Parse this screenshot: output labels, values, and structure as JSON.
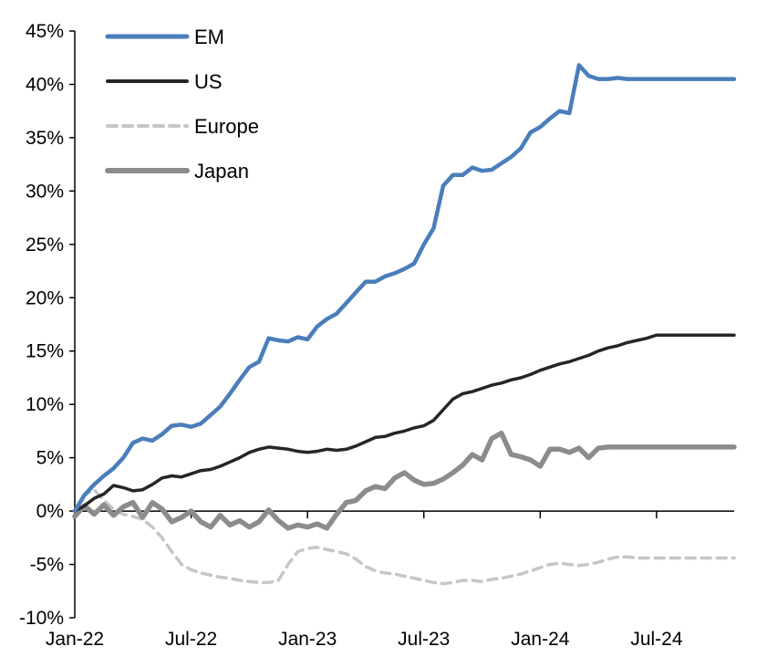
{
  "chart_data": {
    "type": "line",
    "title": "",
    "xlabel": "",
    "ylabel": "",
    "ylim": [
      -10,
      45
    ],
    "y_ticks": [
      45,
      40,
      35,
      30,
      25,
      20,
      15,
      10,
      5,
      0,
      -5,
      -10
    ],
    "y_tick_labels": [
      "45%",
      "40%",
      "35%",
      "30%",
      "25%",
      "20%",
      "15%",
      "10%",
      "5%",
      "0%",
      "-5%",
      "-10%"
    ],
    "x_range": [
      0,
      34
    ],
    "x_ticks": [
      0,
      6,
      12,
      18,
      24,
      30
    ],
    "x_tick_labels": [
      "Jan-22",
      "Jul-22",
      "Jan-23",
      "Jul-23",
      "Jan-24",
      "Jul-24"
    ],
    "legend_position": "top-left",
    "series": [
      {
        "name": "EM",
        "color": "#4a7ebb",
        "dash": "solid",
        "x": [
          0,
          0.5,
          1,
          1.5,
          2,
          2.5,
          3,
          3.5,
          4,
          4.5,
          5,
          5.5,
          6,
          6.5,
          7,
          7.5,
          8,
          8.5,
          9,
          9.5,
          10,
          10.5,
          11,
          11.5,
          12,
          12.5,
          13,
          13.5,
          14,
          14.5,
          15,
          15.5,
          16,
          16.5,
          17,
          17.5,
          18,
          18.5,
          19,
          19.5,
          20,
          20.5,
          21,
          21.5,
          22,
          22.5,
          23,
          23.5,
          24,
          24.5,
          25,
          25.5,
          26,
          26.5,
          27,
          27.5,
          28,
          28.5,
          29,
          29.5,
          30,
          30.5,
          31,
          31.5,
          32,
          32.5,
          33,
          33.4,
          33.8,
          34
        ],
        "values": [
          0,
          1.5,
          2.5,
          3.3,
          4,
          5,
          6.4,
          6.8,
          6.6,
          7.2,
          8,
          8.1,
          7.9,
          8.2,
          9,
          9.8,
          11,
          12.3,
          13.5,
          14,
          16.2,
          16,
          15.9,
          16.3,
          16.1,
          17.3,
          18,
          18.5,
          19.5,
          20.5,
          21.5,
          21.5,
          22,
          22.3,
          22.7,
          23.2,
          25,
          26.5,
          30.5,
          31.5,
          31.5,
          32.2,
          31.9,
          32,
          32.6,
          33.2,
          34,
          35.5,
          36,
          36.8,
          37.5,
          37.3,
          41.8,
          40.8,
          40.5,
          40.5,
          40.6,
          40.5,
          40.5,
          40.5,
          40.5,
          40.5,
          40.5,
          40.5,
          40.5,
          40.5,
          40.5,
          40.5,
          40.5,
          40.5
        ]
      },
      {
        "name": "US",
        "color": "#262626",
        "dash": "solid",
        "x": [
          0,
          0.5,
          1,
          1.5,
          2,
          2.5,
          3,
          3.5,
          4,
          4.5,
          5,
          5.5,
          6,
          6.5,
          7,
          7.5,
          8,
          8.5,
          9,
          9.5,
          10,
          10.5,
          11,
          11.5,
          12,
          12.5,
          13,
          13.5,
          14,
          14.5,
          15,
          15.5,
          16,
          16.5,
          17,
          17.5,
          18,
          18.5,
          19,
          19.5,
          20,
          20.5,
          21,
          21.5,
          22,
          22.5,
          23,
          23.5,
          24,
          24.5,
          25,
          25.5,
          26,
          26.5,
          27,
          27.5,
          28,
          28.5,
          29,
          29.5,
          30,
          30.5,
          31,
          31.5,
          32,
          32.5,
          33,
          33.5,
          34
        ],
        "values": [
          0,
          0.5,
          1.2,
          1.6,
          2.4,
          2.2,
          1.9,
          2.0,
          2.5,
          3.1,
          3.3,
          3.2,
          3.5,
          3.8,
          3.9,
          4.2,
          4.6,
          5.0,
          5.5,
          5.8,
          6.0,
          5.9,
          5.8,
          5.6,
          5.5,
          5.6,
          5.8,
          5.7,
          5.8,
          6.1,
          6.5,
          6.9,
          7.0,
          7.3,
          7.5,
          7.8,
          8.0,
          8.5,
          9.5,
          10.5,
          11.0,
          11.2,
          11.5,
          11.8,
          12.0,
          12.3,
          12.5,
          12.8,
          13.2,
          13.5,
          13.8,
          14.0,
          14.3,
          14.6,
          15.0,
          15.3,
          15.5,
          15.8,
          16.0,
          16.2,
          16.5,
          16.5,
          16.5,
          16.5,
          16.5,
          16.5,
          16.5,
          16.5,
          16.5
        ]
      },
      {
        "name": "Europe",
        "color": "#c6c6c6",
        "dash": "dashed",
        "x": [
          0,
          0.5,
          1,
          1.5,
          2,
          2.5,
          3,
          3.5,
          4,
          4.5,
          5,
          5.5,
          6,
          6.5,
          7,
          7.5,
          8,
          8.5,
          9,
          9.5,
          10,
          10.5,
          11,
          11.5,
          12,
          12.5,
          13,
          13.5,
          14,
          14.5,
          15,
          15.5,
          16,
          16.5,
          17,
          17.5,
          18,
          18.5,
          19,
          19.5,
          20,
          20.5,
          21,
          21.5,
          22,
          22.5,
          23,
          23.5,
          24,
          24.5,
          25,
          25.5,
          26,
          26.5,
          27,
          27.5,
          28,
          28.5,
          29,
          29.5,
          30,
          30.5,
          31,
          31.5,
          32,
          32.5,
          33,
          33.5,
          34
        ],
        "values": [
          0,
          1.5,
          2.0,
          1.0,
          0.2,
          -0.3,
          -0.5,
          -0.8,
          -1.5,
          -2.5,
          -3.8,
          -5.0,
          -5.5,
          -5.8,
          -6.0,
          -6.2,
          -6.3,
          -6.5,
          -6.6,
          -6.7,
          -6.7,
          -6.5,
          -5.0,
          -3.8,
          -3.5,
          -3.4,
          -3.6,
          -3.8,
          -4.0,
          -4.5,
          -5.2,
          -5.6,
          -5.8,
          -5.9,
          -6.1,
          -6.3,
          -6.5,
          -6.7,
          -6.8,
          -6.7,
          -6.5,
          -6.5,
          -6.6,
          -6.4,
          -6.3,
          -6.1,
          -5.9,
          -5.6,
          -5.3,
          -5.0,
          -4.9,
          -5.0,
          -5.1,
          -5.0,
          -4.8,
          -4.5,
          -4.3,
          -4.3,
          -4.4,
          -4.4,
          -4.4,
          -4.4,
          -4.4,
          -4.4,
          -4.4,
          -4.4,
          -4.4,
          -4.4,
          -4.4
        ]
      },
      {
        "name": "Japan",
        "color": "#8c8c8c",
        "dash": "solid",
        "x": [
          0,
          0.5,
          1,
          1.5,
          2,
          2.5,
          3,
          3.5,
          4,
          4.5,
          5,
          5.5,
          6,
          6.5,
          7,
          7.5,
          8,
          8.5,
          9,
          9.5,
          10,
          10.5,
          11,
          11.5,
          12,
          12.5,
          13,
          13.5,
          14,
          14.5,
          15,
          15.5,
          16,
          16.5,
          17,
          17.5,
          18,
          18.5,
          19,
          19.5,
          20,
          20.5,
          21,
          21.5,
          22,
          22.5,
          23,
          23.5,
          24,
          24.5,
          25,
          25.5,
          26,
          26.5,
          27,
          27.5,
          28,
          28.5,
          29,
          29.5,
          30,
          30.5,
          31,
          31.5,
          32,
          32.5,
          33,
          33.5,
          34
        ],
        "values": [
          -0.5,
          0.5,
          -0.3,
          0.6,
          -0.4,
          0.4,
          0.8,
          -0.6,
          0.8,
          0.2,
          -1.0,
          -0.6,
          0.0,
          -1.0,
          -1.5,
          -0.4,
          -1.3,
          -0.9,
          -1.5,
          -1.0,
          0.1,
          -0.9,
          -1.6,
          -1.3,
          -1.5,
          -1.2,
          -1.6,
          -0.3,
          0.8,
          1.0,
          1.9,
          2.3,
          2.1,
          3.1,
          3.6,
          2.9,
          2.5,
          2.6,
          3.0,
          3.6,
          4.3,
          5.3,
          4.8,
          6.8,
          7.3,
          5.3,
          5.1,
          4.8,
          4.2,
          5.8,
          5.8,
          5.5,
          5.9,
          5.0,
          5.9,
          6.0,
          6.0,
          6.0,
          6.0,
          6.0,
          6.0,
          6.0,
          6.0,
          6.0,
          6.0,
          6.0,
          6.0,
          6.0,
          6.0
        ]
      }
    ]
  }
}
